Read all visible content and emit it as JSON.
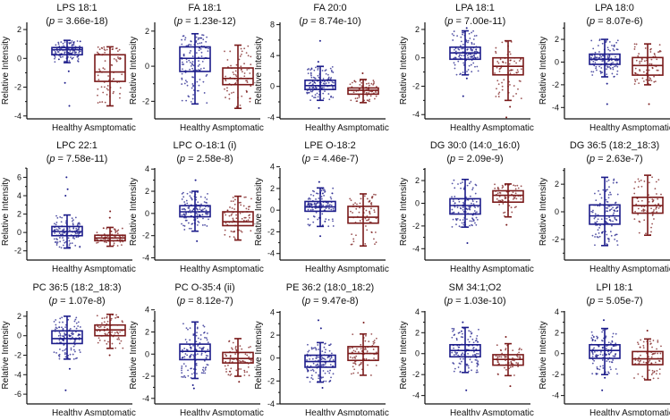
{
  "chart_data": [
    {
      "type": "box",
      "title": "LPS 18:1",
      "p_symbol": "p",
      "p_value": "3.66e-18",
      "ylabel": "Relative Intensity",
      "categories": [
        "Healthy",
        "Asmptomatic"
      ],
      "ylim": [
        -4.2,
        2.5
      ],
      "yticks": [
        "-4",
        "-2",
        "0",
        "2"
      ],
      "series": [
        {
          "name": "Healthy",
          "color": "#1c1c8a",
          "whisker_low": -0.3,
          "q1": 0.25,
          "median": 0.6,
          "q3": 0.75,
          "whisker_high": 1.25,
          "outliers": [
            -0.9,
            -1.7,
            -3.3
          ]
        },
        {
          "name": "Asmptomatic",
          "color": "#7a1a1a",
          "whisker_low": -3.3,
          "q1": -1.6,
          "median": -0.95,
          "q3": 0.25,
          "whisker_high": 0.8,
          "outliers": []
        }
      ]
    },
    {
      "type": "box",
      "title": "FA 18:1",
      "p_symbol": "p",
      "p_value": "1.23e-12",
      "ylabel": "Relative Intensity",
      "categories": [
        "Healthy",
        "Asmptomatic"
      ],
      "ylim": [
        -3,
        2.5
      ],
      "yticks": [
        "-2",
        "0",
        "2"
      ],
      "series": [
        {
          "name": "Healthy",
          "color": "#1c1c8a",
          "whisker_low": -2.15,
          "q1": -0.3,
          "median": 0.45,
          "q3": 1.1,
          "whisker_high": 1.85,
          "outliers": []
        },
        {
          "name": "Asmptomatic",
          "color": "#7a1a1a",
          "whisker_low": -2.4,
          "q1": -1.05,
          "median": -0.7,
          "q3": -0.1,
          "whisker_high": 1.2,
          "outliers": []
        }
      ]
    },
    {
      "type": "box",
      "title": "FA 20:0",
      "p_symbol": "p",
      "p_value": "8.74e-10",
      "ylabel": "Relative Intensity",
      "categories": [
        "Healthy",
        "Asmptomatic"
      ],
      "ylim": [
        -4.2,
        8.3
      ],
      "yticks": [
        "-4",
        "0",
        "4",
        "8"
      ],
      "series": [
        {
          "name": "Healthy",
          "color": "#1c1c8a",
          "whisker_low": -1.8,
          "q1": -0.4,
          "median": 0.1,
          "q3": 0.8,
          "whisker_high": 2.6,
          "outliers": [
            5.9,
            3.2,
            -2.8
          ]
        },
        {
          "name": "Asmptomatic",
          "color": "#7a1a1a",
          "whisker_low": -2.1,
          "q1": -1.0,
          "median": -0.5,
          "q3": -0.2,
          "whisker_high": 0.9,
          "outliers": [
            1.7
          ]
        }
      ]
    },
    {
      "type": "box",
      "title": "LPA 18:1",
      "p_symbol": "p",
      "p_value": "7.00e-11",
      "ylabel": "Relative Intensity",
      "categories": [
        "Healthy",
        "Asmptomatic"
      ],
      "ylim": [
        -4.3,
        2.5
      ],
      "yticks": [
        "-4",
        "-2",
        "0",
        "2"
      ],
      "series": [
        {
          "name": "Healthy",
          "color": "#1c1c8a",
          "whisker_low": -1.2,
          "q1": -0.1,
          "median": 0.35,
          "q3": 0.75,
          "whisker_high": 1.9,
          "outliers": [
            2.1,
            -1.45,
            -2.7
          ]
        },
        {
          "name": "Asmptomatic",
          "color": "#7a1a1a",
          "whisker_low": -3.0,
          "q1": -1.2,
          "median": -0.6,
          "q3": 0.0,
          "whisker_high": 1.2,
          "outliers": [
            -3.45,
            -4.2
          ]
        }
      ]
    },
    {
      "type": "box",
      "title": "LPA 18:0",
      "p_symbol": "p",
      "p_value": "8.07e-6",
      "ylabel": "Relative Intensity",
      "categories": [
        "Healthy",
        "Asmptomatic"
      ],
      "ylim": [
        -5,
        3.5
      ],
      "yticks": [
        "-4",
        "-2",
        "0",
        "2"
      ],
      "series": [
        {
          "name": "Healthy",
          "color": "#1c1c8a",
          "whisker_low": -1.3,
          "q1": -0.2,
          "median": 0.25,
          "q3": 0.7,
          "whisker_high": 2.0,
          "outliers": [
            -1.9,
            -3.7
          ]
        },
        {
          "name": "Asmptomatic",
          "color": "#7a1a1a",
          "whisker_low": -2.0,
          "q1": -1.15,
          "median": -0.3,
          "q3": 0.4,
          "whisker_high": 1.6,
          "outliers": [
            -3.7
          ]
        }
      ]
    },
    {
      "type": "box",
      "title": "LPC 22:1",
      "p_symbol": "p",
      "p_value": "7.58e-11",
      "ylabel": "Relative Intensity",
      "categories": [
        "Healthy",
        "Asmptomatic"
      ],
      "ylim": [
        -3,
        7.5
      ],
      "yticks": [
        "-2",
        "0",
        "2",
        "4",
        "6"
      ],
      "series": [
        {
          "name": "Healthy",
          "color": "#1c1c8a",
          "whisker_low": -1.7,
          "q1": -0.35,
          "median": 0.1,
          "q3": 0.65,
          "whisker_high": 1.9,
          "outliers": [
            6.0,
            4.7,
            4.0
          ]
        },
        {
          "name": "Asmptomatic",
          "color": "#7a1a1a",
          "whisker_low": -1.5,
          "q1": -0.9,
          "median": -0.6,
          "q3": -0.3,
          "whisker_high": 0.55,
          "outliers": [
            2.3,
            1.6
          ]
        }
      ]
    },
    {
      "type": "box",
      "title": "LPC O-18:1 (i)",
      "p_symbol": "p",
      "p_value": "2.58e-8",
      "ylabel": "Relative Intensity",
      "categories": [
        "Healthy",
        "Asmptomatic"
      ],
      "ylim": [
        -4.2,
        4.5
      ],
      "yticks": [
        "-4",
        "-2",
        "0",
        "2",
        "4"
      ],
      "series": [
        {
          "name": "Healthy",
          "color": "#1c1c8a",
          "whisker_low": -1.6,
          "q1": -0.3,
          "median": 0.15,
          "q3": 0.7,
          "whisker_high": 2.0,
          "outliers": [
            3.0,
            -2.5
          ]
        },
        {
          "name": "Asmptomatic",
          "color": "#7a1a1a",
          "whisker_low": -2.4,
          "q1": -1.1,
          "median": -0.75,
          "q3": 0.15,
          "whisker_high": 1.55,
          "outliers": []
        }
      ]
    },
    {
      "type": "box",
      "title": "LPE O-18:2",
      "p_symbol": "p",
      "p_value": "4.46e-7",
      "ylabel": "Relative Intensity",
      "categories": [
        "Healthy",
        "Asmptomatic"
      ],
      "ylim": [
        -4.6,
        4.3
      ],
      "yticks": [
        "-4",
        "-2",
        "0",
        "2",
        "4"
      ],
      "series": [
        {
          "name": "Healthy",
          "color": "#1c1c8a",
          "whisker_low": -1.5,
          "q1": -0.1,
          "median": 0.3,
          "q3": 0.8,
          "whisker_high": 2.05,
          "outliers": [
            2.6,
            -2.4
          ]
        },
        {
          "name": "Asmptomatic",
          "color": "#7a1a1a",
          "whisker_low": -3.3,
          "q1": -1.2,
          "median": -0.65,
          "q3": 0.35,
          "whisker_high": 1.5,
          "outliers": []
        }
      ]
    },
    {
      "type": "box",
      "title": "DG 30:0 (14:0_16:0)",
      "p_symbol": "p",
      "p_value": "2.09e-9",
      "ylabel": "Relative Intensity",
      "categories": [
        "Healthy",
        "Asmptomatic"
      ],
      "ylim": [
        -5,
        3.5
      ],
      "yticks": [
        "-4",
        "-2",
        "0",
        "2"
      ],
      "series": [
        {
          "name": "Healthy",
          "color": "#1c1c8a",
          "whisker_low": -2.1,
          "q1": -0.95,
          "median": -0.2,
          "q3": 0.4,
          "whisker_high": 2.1,
          "outliers": [
            -3.5
          ]
        },
        {
          "name": "Asmptomatic",
          "color": "#7a1a1a",
          "whisker_low": -1.2,
          "q1": 0.1,
          "median": 0.7,
          "q3": 1.1,
          "whisker_high": 1.7,
          "outliers": [
            -1.9
          ]
        }
      ]
    },
    {
      "type": "box",
      "title": "DG 36:5 (18:2_18:3)",
      "p_symbol": "p",
      "p_value": "2.63e-7",
      "ylabel": "Relative Intensity",
      "categories": [
        "Healthy",
        "Asmptomatic"
      ],
      "ylim": [
        -3.5,
        3.5
      ],
      "yticks": [
        "-2",
        "0",
        "2"
      ],
      "series": [
        {
          "name": "Healthy",
          "color": "#1c1c8a",
          "whisker_low": -2.45,
          "q1": -0.9,
          "median": -0.3,
          "q3": 0.5,
          "whisker_high": 2.5,
          "outliers": []
        },
        {
          "name": "Asmptomatic",
          "color": "#7a1a1a",
          "whisker_low": -1.7,
          "q1": -0.1,
          "median": 0.45,
          "q3": 1.05,
          "whisker_high": 2.65,
          "outliers": []
        }
      ]
    },
    {
      "type": "box",
      "title": "PC 36:5 (18:2_18:3)",
      "p_symbol": "p",
      "p_value": "1.07e-8",
      "ylabel": "Relative Intensity",
      "categories": [
        "Healthy",
        "Asmptomatic"
      ],
      "ylim": [
        -7,
        3
      ],
      "yticks": [
        "-6",
        "-4",
        "-2",
        "0",
        "2"
      ],
      "series": [
        {
          "name": "Healthy",
          "color": "#1c1c8a",
          "whisker_low": -2.4,
          "q1": -0.8,
          "median": -0.3,
          "q3": 0.5,
          "whisker_high": 2.0,
          "outliers": [
            -3.4,
            -5.6
          ]
        },
        {
          "name": "Asmptomatic",
          "color": "#7a1a1a",
          "whisker_low": -1.3,
          "q1": 0.0,
          "median": 0.6,
          "q3": 1.1,
          "whisker_high": 2.2,
          "outliers": [
            -2.0
          ]
        }
      ]
    },
    {
      "type": "box",
      "title": "PC O-35:4 (ii)",
      "p_symbol": "p",
      "p_value": "8.12e-7",
      "ylabel": "Relative Intensity",
      "categories": [
        "Healthy",
        "Asmptomatic"
      ],
      "ylim": [
        -4.5,
        4.3
      ],
      "yticks": [
        "-4",
        "-2",
        "0",
        "2",
        "4"
      ],
      "series": [
        {
          "name": "Healthy",
          "color": "#1c1c8a",
          "whisker_low": -2.2,
          "q1": -0.5,
          "median": 0.25,
          "q3": 0.9,
          "whisker_high": 2.9,
          "outliers": [
            -2.8,
            -3.1
          ]
        },
        {
          "name": "Asmptomatic",
          "color": "#7a1a1a",
          "whisker_low": -2.0,
          "q1": -0.8,
          "median": -0.4,
          "q3": 0.15,
          "whisker_high": 1.4,
          "outliers": [
            -2.5
          ]
        }
      ]
    },
    {
      "type": "box",
      "title": "PE 36:2 (18:0_18:2)",
      "p_symbol": "p",
      "p_value": "9.47e-8",
      "ylabel": "Relative Intensity",
      "categories": [
        "Healthy",
        "Asmptomatic"
      ],
      "ylim": [
        -4,
        4.5
      ],
      "yticks": [
        "-4",
        "-2",
        "0",
        "2",
        "4"
      ],
      "series": [
        {
          "name": "Healthy",
          "color": "#1c1c8a",
          "whisker_low": -2.1,
          "q1": -0.8,
          "median": -0.3,
          "q3": 0.25,
          "whisker_high": 1.35,
          "outliers": [
            3.3,
            2.6,
            -2.6
          ]
        },
        {
          "name": "Asmptomatic",
          "color": "#7a1a1a",
          "whisker_low": -1.5,
          "q1": -0.2,
          "median": 0.4,
          "q3": 1.0,
          "whisker_high": 2.1,
          "outliers": [
            3.1
          ]
        }
      ]
    },
    {
      "type": "box",
      "title": "SM 34:1;O2",
      "p_symbol": "p",
      "p_value": "1.03e-10",
      "ylabel": "Relative Intensity",
      "categories": [
        "Healthy",
        "Asmptomatic"
      ],
      "ylim": [
        -4.8,
        4.5
      ],
      "yticks": [
        "-4",
        "-2",
        "0",
        "2",
        "4"
      ],
      "series": [
        {
          "name": "Healthy",
          "color": "#1c1c8a",
          "whisker_low": -1.8,
          "q1": -0.3,
          "median": 0.3,
          "q3": 0.85,
          "whisker_high": 2.5,
          "outliers": [
            3.0,
            -3.5
          ]
        },
        {
          "name": "Asmptomatic",
          "color": "#7a1a1a",
          "whisker_low": -2.1,
          "q1": -1.1,
          "median": -0.55,
          "q3": -0.1,
          "whisker_high": 0.95,
          "outliers": [
            1.6,
            -3.1
          ]
        }
      ]
    },
    {
      "type": "box",
      "title": "LPI 18:1",
      "p_symbol": "p",
      "p_value": "5.05e-7",
      "ylabel": "Relative Intensity",
      "categories": [
        "Healthy",
        "Asmptomatic"
      ],
      "ylim": [
        -4.8,
        4.5
      ],
      "yticks": [
        "-4",
        "-2",
        "0",
        "2",
        "4"
      ],
      "series": [
        {
          "name": "Healthy",
          "color": "#1c1c8a",
          "whisker_low": -2.0,
          "q1": -0.45,
          "median": 0.3,
          "q3": 0.85,
          "whisker_high": 2.4,
          "outliers": [
            3.2,
            -2.3,
            -3.5
          ]
        },
        {
          "name": "Asmptomatic",
          "color": "#7a1a1a",
          "whisker_low": -2.5,
          "q1": -1.05,
          "median": -0.5,
          "q3": 0.2,
          "whisker_high": 1.4,
          "outliers": [
            2.2
          ]
        }
      ]
    }
  ]
}
